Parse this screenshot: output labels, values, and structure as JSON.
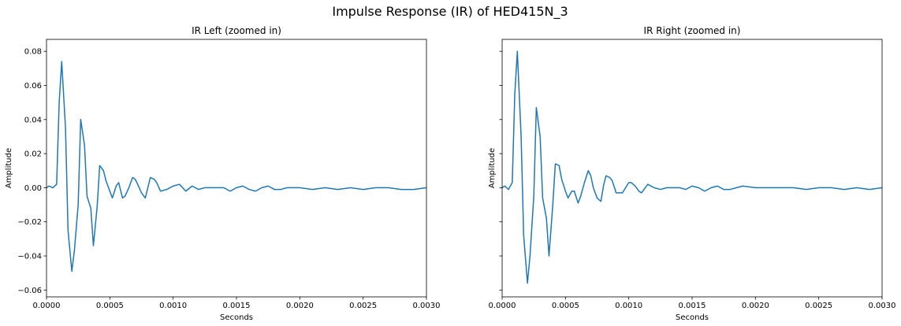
{
  "figure": {
    "title": "Impulse Response (IR) of HED415N_3",
    "line_color": "#1f77b4"
  },
  "chart_data": [
    {
      "type": "line",
      "title": "IR Left (zoomed in)",
      "xlabel": "Seconds",
      "ylabel": "Amplitude",
      "xlim": [
        0,
        0.003
      ],
      "ylim": [
        -0.064,
        0.087
      ],
      "xticks": [
        0,
        0.0005,
        0.001,
        0.0015,
        0.002,
        0.0025,
        0.003
      ],
      "xtick_labels": [
        "0.0000",
        "0.0005",
        "0.0010",
        "0.0015",
        "0.0020",
        "0.0025",
        "0.0030"
      ],
      "yticks": [
        0.08,
        0.06,
        0.04,
        0.02,
        0.0,
        -0.02,
        -0.04,
        -0.06
      ],
      "ytick_labels": [
        "0.08",
        "0.06",
        "0.04",
        "0.02",
        "0.00",
        "−0.02",
        "−0.04",
        "−0.06"
      ],
      "grid": false,
      "series": [
        {
          "x": [
            0,
            2e-05,
            5e-05,
            8e-05,
            0.0001,
            0.00012,
            0.00015,
            0.00017,
            0.0002,
            0.00022,
            0.00025,
            0.00027,
            0.0003,
            0.00032,
            0.00035,
            0.00037,
            0.0004,
            0.00042,
            0.00045,
            0.00047,
            0.0005,
            0.00052,
            0.00055,
            0.00057,
            0.0006,
            0.00062,
            0.00065,
            0.00068,
            0.0007,
            0.00072,
            0.00075,
            0.00078,
            0.0008,
            0.00082,
            0.00085,
            0.00087,
            0.0009,
            0.00095,
            0.001,
            0.00105,
            0.0011,
            0.00115,
            0.0012,
            0.00125,
            0.0013,
            0.0014,
            0.00145,
            0.0015,
            0.00155,
            0.0016,
            0.00165,
            0.0017,
            0.00175,
            0.0018,
            0.00185,
            0.0019,
            0.002,
            0.0021,
            0.0022,
            0.0023,
            0.0024,
            0.0025,
            0.0026,
            0.0027,
            0.0028,
            0.0029,
            0.003
          ],
          "y": [
            0.0,
            0.001,
            0.0,
            0.002,
            0.05,
            0.074,
            0.035,
            -0.025,
            -0.049,
            -0.037,
            -0.01,
            0.04,
            0.025,
            -0.005,
            -0.012,
            -0.034,
            -0.011,
            0.013,
            0.01,
            0.004,
            -0.002,
            -0.006,
            0.001,
            0.003,
            -0.006,
            -0.005,
            0.0,
            0.006,
            0.005,
            0.002,
            -0.003,
            -0.006,
            0.0,
            0.006,
            0.005,
            0.003,
            -0.002,
            -0.001,
            0.001,
            0.002,
            -0.002,
            0.001,
            -0.001,
            0.0,
            0.0,
            0.0,
            -0.002,
            0.0,
            0.001,
            -0.001,
            -0.002,
            0.0,
            0.001,
            -0.001,
            -0.001,
            0.0,
            0.0,
            -0.001,
            0.0,
            -0.001,
            0.0,
            -0.001,
            0.0,
            0.0,
            -0.001,
            -0.001,
            0.0
          ]
        }
      ]
    },
    {
      "type": "line",
      "title": "IR Right (zoomed in)",
      "xlabel": "Seconds",
      "ylabel": "Amplitude",
      "xlim": [
        0,
        0.003
      ],
      "ylim": [
        -0.064,
        0.087
      ],
      "xticks": [
        0,
        0.0005,
        0.001,
        0.0015,
        0.002,
        0.0025,
        0.003
      ],
      "xtick_labels": [
        "0.0000",
        "0.0005",
        "0.0010",
        "0.0015",
        "0.0020",
        "0.0025",
        "0.0030"
      ],
      "yticks": [
        0.08,
        0.06,
        0.04,
        0.02,
        0.0,
        -0.02,
        -0.04,
        -0.06
      ],
      "ytick_labels": [],
      "grid": false,
      "series": [
        {
          "x": [
            0,
            2e-05,
            5e-05,
            8e-05,
            0.0001,
            0.00012,
            0.00015,
            0.00017,
            0.0002,
            0.00022,
            0.00025,
            0.00027,
            0.0003,
            0.00032,
            0.00035,
            0.00037,
            0.0004,
            0.00042,
            0.00045,
            0.00047,
            0.0005,
            0.00052,
            0.00055,
            0.00057,
            0.0006,
            0.00062,
            0.00065,
            0.00068,
            0.0007,
            0.00072,
            0.00075,
            0.00078,
            0.0008,
            0.00082,
            0.00085,
            0.00087,
            0.0009,
            0.00095,
            0.001,
            0.00102,
            0.00105,
            0.00108,
            0.0011,
            0.00115,
            0.0012,
            0.00125,
            0.0013,
            0.0014,
            0.00145,
            0.0015,
            0.00155,
            0.0016,
            0.00165,
            0.0017,
            0.00175,
            0.0018,
            0.00185,
            0.0019,
            0.002,
            0.0021,
            0.0022,
            0.0023,
            0.0024,
            0.0025,
            0.0026,
            0.0027,
            0.0028,
            0.0029,
            0.003
          ],
          "y": [
            0.0,
            0.001,
            -0.001,
            0.003,
            0.055,
            0.08,
            0.03,
            -0.028,
            -0.056,
            -0.04,
            -0.005,
            0.047,
            0.03,
            -0.006,
            -0.018,
            -0.04,
            -0.01,
            0.014,
            0.013,
            0.005,
            -0.002,
            -0.006,
            -0.002,
            -0.002,
            -0.009,
            -0.005,
            0.003,
            0.01,
            0.007,
            0.0,
            -0.006,
            -0.008,
            0.001,
            0.007,
            0.006,
            0.004,
            -0.003,
            -0.003,
            0.003,
            0.003,
            0.001,
            -0.002,
            -0.003,
            0.002,
            0.0,
            -0.001,
            0.0,
            0.0,
            -0.001,
            0.001,
            0.0,
            -0.002,
            0.0,
            0.001,
            -0.001,
            -0.001,
            0.0,
            0.001,
            0.0,
            0.0,
            0.0,
            0.0,
            -0.001,
            0.0,
            0.0,
            -0.001,
            0.0,
            -0.001,
            0.0
          ]
        }
      ]
    }
  ]
}
